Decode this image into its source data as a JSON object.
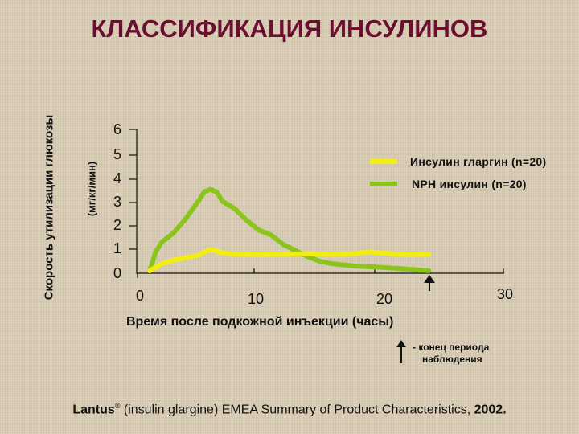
{
  "title": "КЛАССИФИКАЦИЯ ИНСУЛИНОВ",
  "colors": {
    "background": "#d8cbb4",
    "title": "#6a0f2f",
    "glargine": "#f3ee12",
    "nph": "#8cc41e",
    "axis": "#111111"
  },
  "chart_data": {
    "type": "line",
    "title": "КЛАССИФИКАЦИЯ ИНСУЛИНОВ",
    "xlabel": "Время после подкожной инъекции (часы)",
    "ylabel": "Скорость утилизации глюкозы",
    "ylabel_units": "(мг/кг/мин)",
    "xlim": [
      0,
      30
    ],
    "ylim": [
      0,
      6
    ],
    "x_ticks": [
      "0",
      "10",
      "20",
      "30"
    ],
    "y_ticks": [
      "0",
      "1",
      "2",
      "3",
      "4",
      "5",
      "6"
    ],
    "grid": false,
    "legend_position": "upper right",
    "series": [
      {
        "name": "Инсулин гларгин (n=20)",
        "color": "#f3ee12",
        "x": [
          1,
          2,
          3,
          4,
          5,
          6,
          7,
          8,
          10,
          12,
          14,
          16,
          18,
          19,
          20,
          22,
          24
        ],
        "values": [
          0.1,
          0.4,
          0.55,
          0.65,
          0.75,
          1.0,
          0.85,
          0.8,
          0.78,
          0.8,
          0.82,
          0.8,
          0.82,
          0.9,
          0.85,
          0.78,
          0.8
        ]
      },
      {
        "name": "NPH инсулин (n=20)",
        "color": "#8cc41e",
        "x": [
          1,
          1.5,
          2,
          3,
          4,
          5,
          5.5,
          6,
          6.5,
          7,
          8,
          9,
          10,
          11,
          12,
          13,
          14,
          15,
          16,
          18,
          20,
          22,
          24
        ],
        "values": [
          0.1,
          0.9,
          1.3,
          1.7,
          2.3,
          3.0,
          3.4,
          3.5,
          3.4,
          3.0,
          2.7,
          2.2,
          1.8,
          1.6,
          1.2,
          0.95,
          0.7,
          0.5,
          0.4,
          0.3,
          0.25,
          0.18,
          0.1
        ]
      }
    ],
    "annotations": [
      {
        "type": "arrow-up",
        "x": 24,
        "label": "конец периода наблюдения"
      }
    ]
  },
  "axes": {
    "ylabel_outer": "Скорость утилизации глюкозы",
    "ylabel_inner": "(мг/кг/мин)",
    "xlabel": "Время после подкожной инъекции (часы)",
    "y_ticks": [
      "6",
      "5",
      "4",
      "3",
      "2",
      "1",
      "0"
    ],
    "x_ticks": [
      "0",
      "10",
      "20",
      "30"
    ]
  },
  "legend": {
    "glargine": "Инсулин гларгин (n=20)",
    "nph": "NPH инсулин (n=20)"
  },
  "note": {
    "dash": "-",
    "line1": "конец периода",
    "line2": "наблюдения"
  },
  "source": {
    "brand": "Lantus",
    "reg": "®",
    "text": " (insulin glargine) EMEA Summary of Product Characteristics, ",
    "year": "2002."
  }
}
